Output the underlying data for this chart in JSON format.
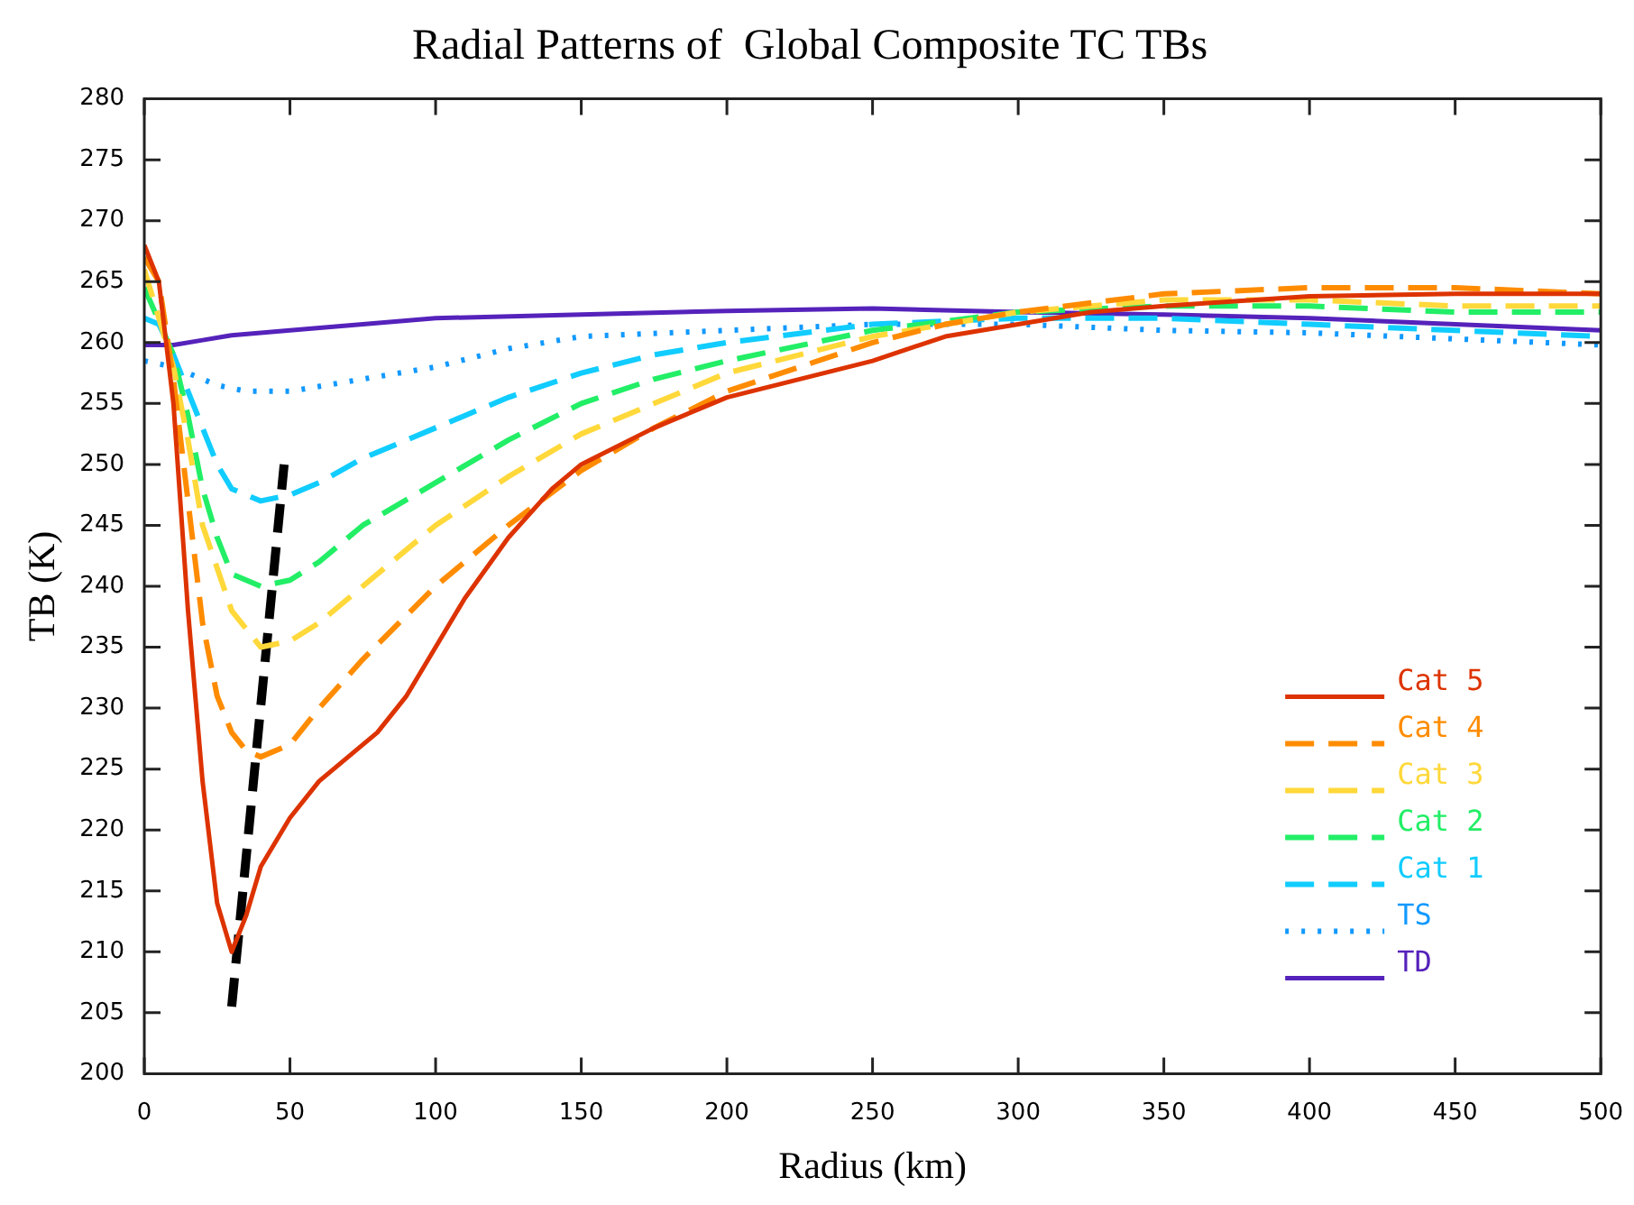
{
  "chart_data": {
    "type": "line",
    "title": "Radial Patterns of  Global Composite TC TBs",
    "xlabel": "Radius (km)",
    "ylabel": "TB (K)",
    "xlim": [
      0,
      500
    ],
    "xticks": [
      0,
      50,
      100,
      150,
      200,
      250,
      300,
      350,
      400,
      450,
      500
    ],
    "ylim": [
      200,
      280
    ],
    "yticks": [
      200,
      205,
      210,
      215,
      220,
      225,
      230,
      235,
      240,
      245,
      250,
      255,
      260,
      265,
      270,
      275,
      280
    ],
    "grid": false,
    "legend": "bottom right",
    "marker": "none",
    "series": [
      {
        "name": "Cat 5",
        "color": "#dd3300",
        "line_style": "solid",
        "x": [
          0,
          5,
          10,
          15,
          20,
          25,
          30,
          35,
          40,
          50,
          60,
          70,
          80,
          90,
          100,
          110,
          125,
          140,
          150,
          175,
          200,
          225,
          250,
          275,
          300,
          325,
          350,
          400,
          450,
          500
        ],
        "values": [
          268,
          265,
          255,
          238,
          224,
          214,
          210,
          213,
          217,
          221,
          224,
          226,
          228,
          231,
          235,
          239,
          244,
          248,
          250,
          253,
          255.5,
          257,
          258.5,
          260.5,
          261.5,
          262.5,
          263,
          263.8,
          264,
          264
        ]
      },
      {
        "name": "Cat 4",
        "color": "#ff8c00",
        "line_style": "dashed",
        "x": [
          0,
          5,
          10,
          15,
          20,
          25,
          30,
          35,
          40,
          50,
          60,
          75,
          100,
          125,
          150,
          175,
          200,
          225,
          250,
          275,
          300,
          350,
          400,
          450,
          500
        ],
        "values": [
          267,
          265,
          257,
          247,
          237,
          231,
          228,
          226.5,
          226,
          227,
          230,
          234,
          240,
          245,
          249.5,
          253,
          256,
          258,
          260,
          261.5,
          262.5,
          264,
          264.5,
          264.5,
          264
        ]
      },
      {
        "name": "Cat 3",
        "color": "#ffd83a",
        "line_style": "dashed",
        "x": [
          0,
          10,
          15,
          20,
          30,
          40,
          50,
          60,
          75,
          100,
          125,
          150,
          175,
          200,
          250,
          300,
          350,
          400,
          450,
          500
        ],
        "values": [
          266,
          258,
          252,
          245,
          238,
          235,
          235.5,
          237,
          240,
          245,
          249,
          252.5,
          255,
          257.5,
          260.5,
          262.5,
          263.5,
          263.5,
          263,
          263
        ]
      },
      {
        "name": "Cat 2",
        "color": "#22ee66",
        "line_style": "dashed",
        "x": [
          0,
          10,
          15,
          20,
          25,
          30,
          40,
          50,
          60,
          75,
          100,
          125,
          150,
          175,
          200,
          250,
          300,
          350,
          400,
          450,
          500
        ],
        "values": [
          264.5,
          259,
          254,
          248,
          244,
          241,
          240,
          240.5,
          242,
          245,
          248.5,
          252,
          255,
          257,
          258.5,
          261,
          262.5,
          263,
          263,
          262.5,
          262.5
        ]
      },
      {
        "name": "Cat 1",
        "color": "#11ccff",
        "line_style": "dashed",
        "x": [
          0,
          5,
          10,
          15,
          20,
          25,
          30,
          40,
          50,
          60,
          75,
          100,
          125,
          150,
          175,
          200,
          250,
          300,
          350,
          400,
          450,
          500
        ],
        "values": [
          262,
          261.5,
          259,
          256,
          253,
          250,
          248,
          247,
          247.5,
          248.5,
          250.5,
          253,
          255.5,
          257.5,
          259,
          260,
          261.5,
          262,
          262,
          261.5,
          261,
          260.5
        ]
      },
      {
        "name": "TS",
        "color": "#1199ff",
        "line_style": "dotted",
        "x": [
          0,
          10,
          15,
          25,
          35,
          50,
          75,
          100,
          125,
          150,
          200,
          250,
          300,
          350,
          400,
          450,
          500
        ],
        "values": [
          258.5,
          258,
          257.5,
          256.5,
          256,
          256,
          257,
          258,
          259.5,
          260.5,
          261,
          261.5,
          261.5,
          261,
          260.8,
          260.3,
          259.8
        ]
      },
      {
        "name": "TD",
        "color": "#5522bb",
        "line_style": "solid",
        "x": [
          0,
          10,
          20,
          30,
          50,
          75,
          100,
          150,
          200,
          250,
          300,
          350,
          400,
          450,
          500
        ],
        "values": [
          259.8,
          259.8,
          260.2,
          260.6,
          261,
          261.5,
          262,
          262.3,
          262.6,
          262.8,
          262.5,
          262.3,
          262,
          261.5,
          261
        ]
      },
      {
        "color": "#000000",
        "line_style": "dashed",
        "x": [
          30,
          48
        ],
        "values": [
          205.5,
          250
        ]
      }
    ]
  }
}
